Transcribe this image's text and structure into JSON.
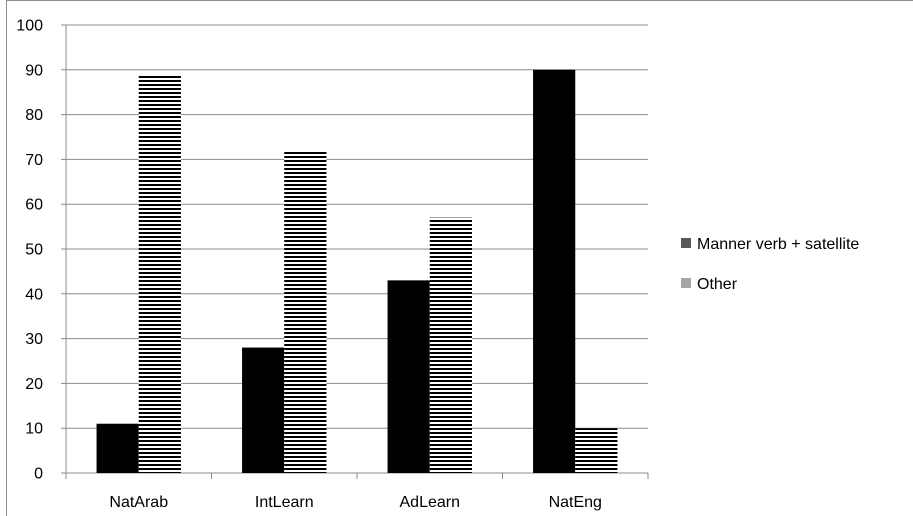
{
  "chart_data": {
    "type": "bar",
    "categories": [
      "NatArab",
      "IntLearn",
      "AdLearn",
      "NatEng"
    ],
    "series": [
      {
        "name": "Manner verb + satellite",
        "values": [
          11,
          28,
          43,
          90
        ],
        "color": "#000000",
        "legend_color": "#595959",
        "pattern": "solid"
      },
      {
        "name": "Other",
        "values": [
          89,
          72,
          57,
          10
        ],
        "color": "#000000",
        "legend_color": "#a6a6a6",
        "pattern": "horizontal-stripes"
      }
    ],
    "title": "",
    "xlabel": "",
    "ylabel": "",
    "ylim": [
      0,
      100
    ],
    "y_ticks": [
      "0",
      "10",
      "20",
      "30",
      "40",
      "50",
      "60",
      "70",
      "80",
      "90",
      "100"
    ],
    "grid": true,
    "legend_position": "right",
    "gridline_color": "#8c8c8c"
  }
}
